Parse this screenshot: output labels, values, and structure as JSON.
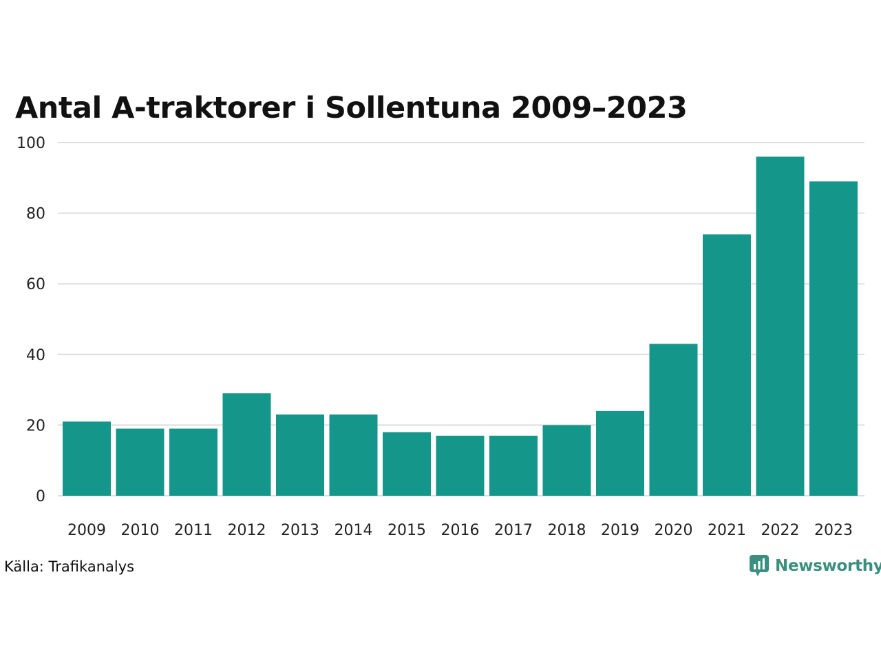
{
  "chart_data": {
    "type": "bar",
    "title": "Antal A-traktorer i Sollentuna 2009–2023",
    "categories": [
      "2009",
      "2010",
      "2011",
      "2012",
      "2013",
      "2014",
      "2015",
      "2016",
      "2017",
      "2018",
      "2019",
      "2020",
      "2021",
      "2022",
      "2023"
    ],
    "values": [
      21,
      19,
      19,
      29,
      23,
      23,
      18,
      17,
      17,
      20,
      24,
      43,
      74,
      96,
      89
    ],
    "xlabel": "",
    "ylabel": "",
    "ylim": [
      0,
      100
    ],
    "yticks": [
      0,
      20,
      40,
      60,
      80,
      100
    ],
    "grid": true,
    "bar_color": "#14968a"
  },
  "footer": {
    "source": "Källa: Trafikanalys",
    "brand": "Newsworthy",
    "brand_color": "#3a8f7f"
  }
}
